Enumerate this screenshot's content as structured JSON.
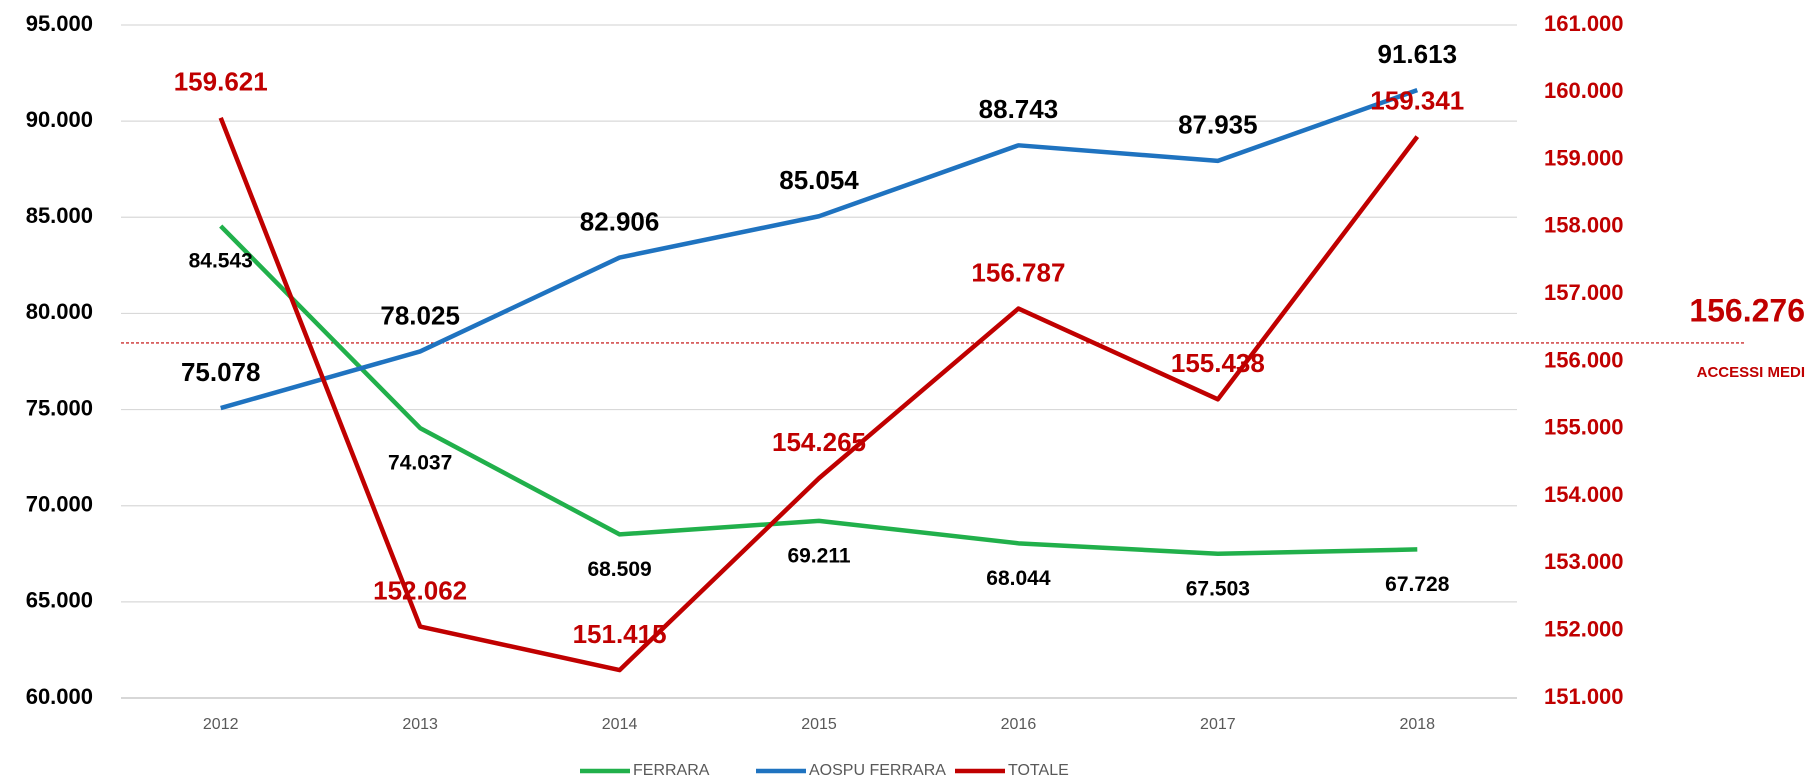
{
  "chart_data": {
    "type": "line",
    "categories": [
      "2012",
      "2013",
      "2014",
      "2015",
      "2016",
      "2017",
      "2018"
    ],
    "series": [
      {
        "name": "FERRARA",
        "color": "#21b04b",
        "values": [
          84543,
          74037,
          68509,
          69211,
          68044,
          67503,
          67728
        ],
        "value_labels": [
          "84.543",
          "74.037",
          "68.509",
          "69.211",
          "68.044",
          "67.503",
          "67.728"
        ]
      },
      {
        "name": "AOSPU FERRARA",
        "color": "#1f73c0",
        "values": [
          75078,
          78025,
          82906,
          85054,
          88743,
          87935,
          91613
        ],
        "value_labels": [
          "75.078",
          "78.025",
          "82.906",
          "85.054",
          "88.743",
          "87.935",
          "91.613"
        ]
      },
      {
        "name": "TOTALE",
        "color": "#c00000",
        "axis": "y2",
        "values": [
          159621,
          152062,
          151415,
          154265,
          156787,
          155438,
          159341
        ],
        "value_labels": [
          "159.621",
          "152.062",
          "151.415",
          "154.265",
          "156.787",
          "155.438",
          "159.341"
        ]
      }
    ],
    "ylim": [
      60000,
      95000
    ],
    "yticks": [
      {
        "value": 60000,
        "label": "60.000"
      },
      {
        "value": 65000,
        "label": "65.000"
      },
      {
        "value": 70000,
        "label": "70.000"
      },
      {
        "value": 75000,
        "label": "75.000"
      },
      {
        "value": 80000,
        "label": "80.000"
      },
      {
        "value": 85000,
        "label": "85.000"
      },
      {
        "value": 90000,
        "label": "90.000"
      },
      {
        "value": 95000,
        "label": "95.000"
      }
    ],
    "y2lim": [
      151000,
      161000
    ],
    "y2ticks": [
      {
        "value": 151000,
        "label": "151.000"
      },
      {
        "value": 152000,
        "label": "152.000"
      },
      {
        "value": 153000,
        "label": "153.000"
      },
      {
        "value": 154000,
        "label": "154.000"
      },
      {
        "value": 155000,
        "label": "155.000"
      },
      {
        "value": 156000,
        "label": "156.000"
      },
      {
        "value": 157000,
        "label": "157.000"
      },
      {
        "value": 158000,
        "label": "158.000"
      },
      {
        "value": 159000,
        "label": "159.000"
      },
      {
        "value": 160000,
        "label": "160.000"
      },
      {
        "value": 161000,
        "label": "161.000"
      }
    ],
    "y2color": "#c00000",
    "grid": true,
    "legend": "bottom",
    "reference_line": {
      "value": 156276,
      "label": "156.276",
      "text": "ACCESSI MEDI",
      "color": "#c00000"
    }
  }
}
